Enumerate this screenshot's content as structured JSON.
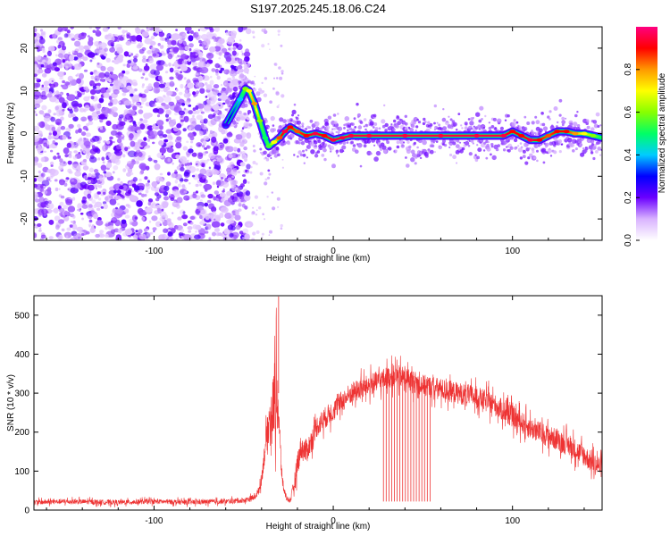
{
  "chart_data": [
    {
      "type": "heatmap",
      "title": "S197.2025.245.18.06.C24",
      "xlabel": "Height of straight line (km)",
      "ylabel": "Frequency (Hz)",
      "xlim": [
        -167,
        150
      ],
      "ylim": [
        -25,
        25
      ],
      "xticks": [
        -100,
        0,
        100
      ],
      "xtick_labels": [
        "-100",
        "0",
        "100"
      ],
      "yticks": [
        -20,
        -10,
        0,
        10,
        20
      ],
      "ytick_labels": [
        "-20",
        "-10",
        "0",
        "10",
        "20"
      ],
      "noise_region": {
        "x_from": -167,
        "x_to": -47,
        "freq_from": -25,
        "freq_to": 25,
        "typical_amplitude": 0.2
      },
      "sparse_region": {
        "x_from": -47,
        "x_to": -28
      },
      "ridge": {
        "x": [
          -60,
          -52,
          -49,
          -47,
          -44,
          -41,
          -38,
          -36,
          -33,
          -30,
          -27,
          -24,
          -20,
          -15,
          -10,
          -5,
          0,
          5,
          10,
          20,
          40,
          60,
          80,
          95,
          100,
          105,
          110,
          115,
          120,
          125,
          130,
          135,
          140,
          145,
          150
        ],
        "frequency": [
          2,
          8,
          10.5,
          10,
          7,
          3,
          -1,
          -3,
          -2,
          -1,
          0.5,
          1.5,
          0.5,
          -0.5,
          0,
          -0.5,
          -1.5,
          -1,
          -0.5,
          -0.5,
          -0.5,
          -0.5,
          -0.5,
          -0.5,
          0.5,
          -0.5,
          -1.5,
          -1.5,
          -0.5,
          0.5,
          0.5,
          0,
          0,
          -0.5,
          -1
        ],
        "amplitude": [
          0.25,
          0.4,
          0.6,
          0.7,
          0.8,
          0.6,
          0.5,
          0.55,
          0.7,
          0.85,
          0.95,
          0.9,
          0.85,
          0.9,
          0.95,
          0.9,
          0.95,
          0.95,
          0.95,
          0.95,
          0.95,
          0.95,
          0.95,
          0.95,
          0.9,
          0.9,
          0.95,
          0.9,
          0.85,
          0.9,
          0.9,
          0.8,
          0.7,
          0.6,
          0.5
        ]
      },
      "colorbar": {
        "label": "Normalized spectral amplitude",
        "range": [
          0,
          1
        ],
        "ticks": [
          0.0,
          0.2,
          0.4,
          0.6,
          0.8
        ],
        "tick_labels": [
          "0.0",
          "0.2",
          "0.4",
          "0.6",
          "0.8"
        ],
        "colormap": [
          "#ffffff",
          "#d9b3ff",
          "#6a00ff",
          "#0000ff",
          "#00ccff",
          "#00ff66",
          "#88ff00",
          "#ffff00",
          "#ff9900",
          "#ff0000",
          "#ff0080"
        ]
      }
    },
    {
      "type": "line",
      "xlabel": "Height of straight line (km)",
      "ylabel": "SNR (10 * v/v)",
      "xlim": [
        -167,
        150
      ],
      "ylim": [
        0,
        550
      ],
      "xticks": [
        -100,
        0,
        100
      ],
      "xtick_labels": [
        "-100",
        "0",
        "100"
      ],
      "yticks": [
        0,
        100,
        200,
        300,
        400,
        500
      ],
      "ytick_labels": [
        "0",
        "100",
        "200",
        "300",
        "400",
        "500"
      ],
      "series": [
        {
          "name": "SNR",
          "color": "#ee3333",
          "x": [
            -167,
            -150,
            -120,
            -100,
            -80,
            -60,
            -50,
            -45,
            -42,
            -40,
            -38,
            -36,
            -35,
            -34,
            -33,
            -32,
            -31,
            -30,
            -29,
            -28,
            -26,
            -24,
            -22,
            -20,
            -18,
            -15,
            -12,
            -10,
            -5,
            0,
            5,
            10,
            15,
            20,
            25,
            30,
            35,
            40,
            45,
            50,
            55,
            60,
            70,
            80,
            90,
            100,
            110,
            120,
            130,
            140,
            145,
            150
          ],
          "y": [
            20,
            22,
            20,
            22,
            20,
            22,
            25,
            30,
            45,
            80,
            160,
            220,
            240,
            250,
            290,
            300,
            280,
            200,
            110,
            60,
            30,
            25,
            60,
            120,
            160,
            150,
            180,
            210,
            235,
            255,
            280,
            300,
            310,
            320,
            330,
            340,
            345,
            340,
            330,
            320,
            315,
            310,
            300,
            290,
            270,
            240,
            210,
            190,
            170,
            140,
            120,
            110
          ],
          "noise": [
            8,
            8,
            8,
            8,
            8,
            8,
            8,
            10,
            12,
            20,
            40,
            60,
            80,
            90,
            120,
            150,
            110,
            60,
            30,
            15,
            8,
            8,
            25,
            40,
            40,
            40,
            35,
            35,
            35,
            35,
            35,
            35,
            35,
            35,
            35,
            35,
            35,
            35,
            35,
            35,
            35,
            35,
            35,
            35,
            35,
            35,
            35,
            35,
            35,
            35,
            35,
            35
          ]
        }
      ],
      "dropouts": {
        "x_from": 28,
        "x_to": 54,
        "count": 18,
        "min_value": 22
      }
    }
  ]
}
